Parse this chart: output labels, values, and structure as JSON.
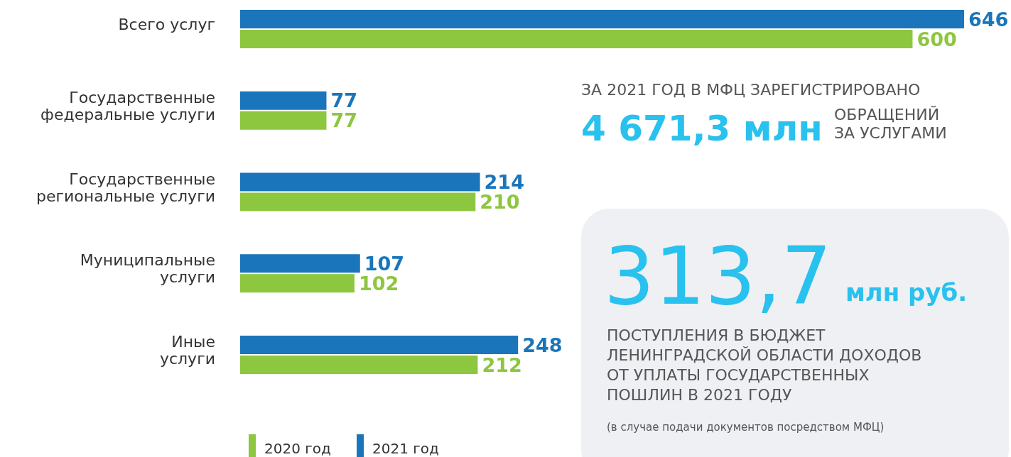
{
  "chart_data": [
    {
      "type": "bar",
      "orientation": "horizontal",
      "categories": [
        "Всего услуг",
        "Государственные\nфедеральные услуги",
        "Государственные\nрегиональные услуги",
        "Муниципальные\nуслуги",
        "Иные\nуслуги"
      ],
      "series": [
        {
          "name": "2020 год",
          "color": "#8dc63f",
          "values": [
            600,
            77,
            210,
            102,
            212
          ]
        },
        {
          "name": "2021 год",
          "color": "#1a75bb",
          "values": [
            646,
            77,
            214,
            107,
            248
          ]
        }
      ],
      "data_labels": true,
      "legend": "bottom"
    },
    {
      "type": "other",
      "title": "ЗА 2021 ГОД В МФЦ ЗАРЕГИСТРИРОВАНО",
      "annotations": [
        "4 671,3 млн",
        "ОБРАЩЕНИЙ\nЗА УСЛУГАМИ"
      ]
    },
    {
      "type": "other",
      "annotations": [
        "313,7",
        "млн руб.",
        "ПОСТУПЛЕНИЯ В БЮДЖЕТ\nЛЕНИНГРАДСКОЙ ОБЛАСТИ ДОХОДОВ\nОТ УПЛАТЫ ГОСУДАРСТВЕННЫХ\nПОШЛИН В 2021 ГОДУ",
        "(в случае подачи документов посредством МФЦ)"
      ]
    }
  ]
}
